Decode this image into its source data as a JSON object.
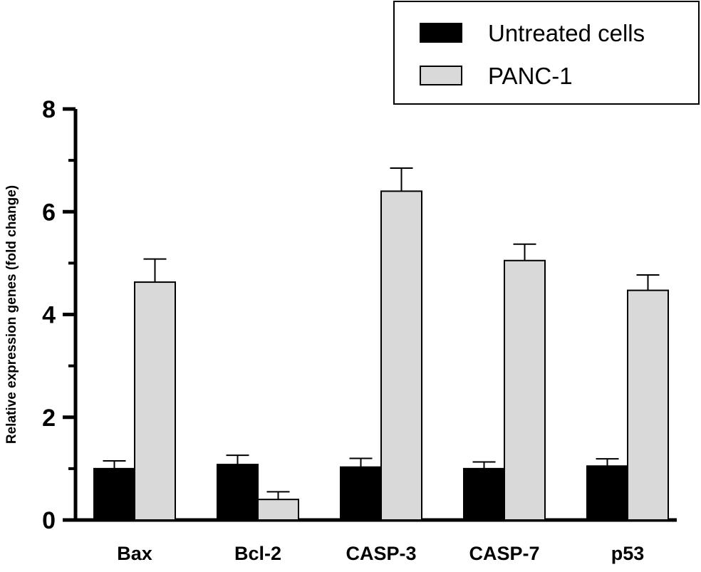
{
  "chart_data": {
    "type": "bar",
    "title": "",
    "xlabel": "",
    "ylabel": "Relative expression genes (fold change)",
    "ylim": [
      0,
      8
    ],
    "yticks": [
      0,
      2,
      4,
      6,
      8
    ],
    "grid": false,
    "legend_position": "top-right",
    "categories": [
      "Bax",
      "Bcl-2",
      "CASP-3",
      "CASP-7",
      "p53"
    ],
    "series": [
      {
        "name": "Untreated cells",
        "color": "#000000",
        "values": [
          1.0,
          1.08,
          1.03,
          1.0,
          1.05
        ],
        "errors": [
          0.15,
          0.18,
          0.17,
          0.13,
          0.14
        ]
      },
      {
        "name": "PANC-1",
        "color": "#d9d9d9",
        "values": [
          4.63,
          0.4,
          6.4,
          5.05,
          4.47
        ],
        "errors": [
          0.45,
          0.15,
          0.45,
          0.32,
          0.3
        ]
      }
    ]
  }
}
